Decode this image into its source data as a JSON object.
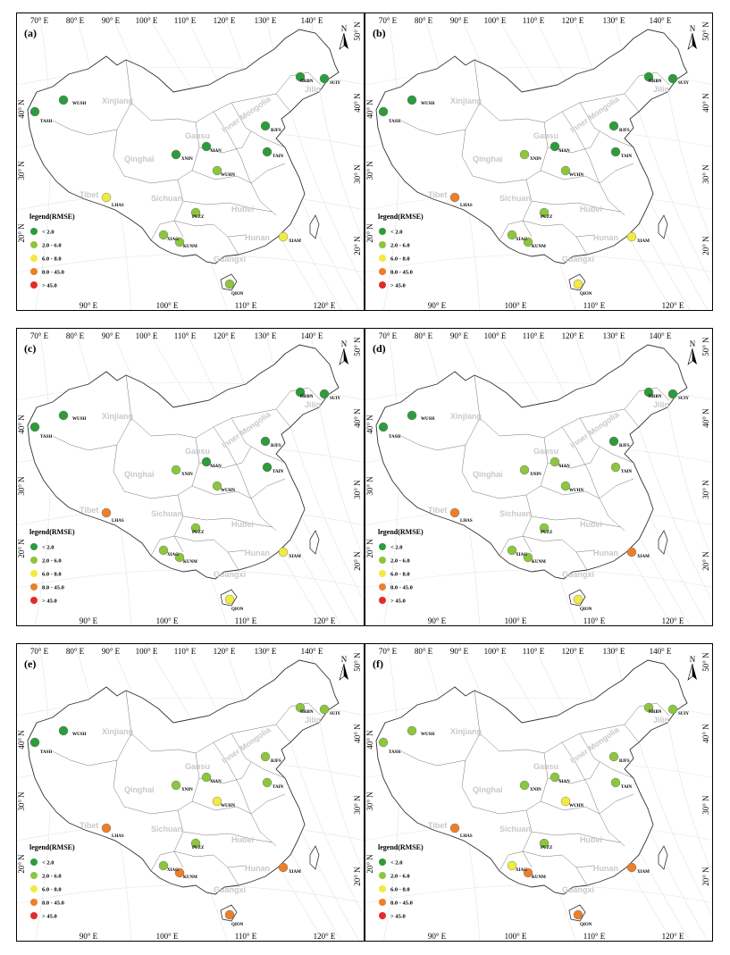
{
  "top_axis_labels": [
    "70° E",
    "80° E",
    "90° E",
    "100° E",
    "110° E",
    "120° E",
    "130° E",
    "140° E"
  ],
  "bottom_axis_labels": [
    "90° E",
    "100° E",
    "110° E",
    "120° E"
  ],
  "left_axis_labels": [
    "40° N",
    "30° N",
    "20° N"
  ],
  "right_axis_labels": [
    "50° N",
    "40° N",
    "30° N",
    "20° N"
  ],
  "north_label": "N",
  "province_labels": [
    "Xinjiang",
    "Inner Mongolia",
    "Qinghai",
    "Tibet",
    "Sichuan",
    "Hubei",
    "Hunan",
    "Guangxi",
    "Jilin",
    "Gansu"
  ],
  "legend": {
    "title": "legend(RMSE)",
    "classes": [
      {
        "label": "< 2.0",
        "color": "#2e9b3c"
      },
      {
        "label": "2.0 - 6.0",
        "color": "#8cc63f"
      },
      {
        "label": "6.0 - 8.0",
        "color": "#f2ea40"
      },
      {
        "label": "8.0 - 45.0",
        "color": "#ec7f2a"
      },
      {
        "label": "> 45.0",
        "color": "#e32a2a"
      }
    ]
  },
  "stations": [
    "TASH",
    "WUSH",
    "HRBN",
    "SUIY",
    "BJFS",
    "TAIN",
    "XNIN",
    "XIAN",
    "WUHN",
    "LHAS",
    "KUNM",
    "XIAG",
    "PUZZ",
    "XIAM",
    "QION"
  ],
  "panels": [
    {
      "label": "(a)",
      "classes": [
        0,
        0,
        0,
        0,
        0,
        0,
        0,
        0,
        1,
        2,
        1,
        1,
        1,
        2,
        1
      ]
    },
    {
      "label": "(b)",
      "classes": [
        0,
        0,
        0,
        0,
        0,
        0,
        1,
        0,
        1,
        3,
        1,
        1,
        1,
        2,
        2
      ]
    },
    {
      "label": "(c)",
      "classes": [
        0,
        0,
        0,
        0,
        0,
        0,
        1,
        0,
        1,
        3,
        1,
        1,
        1,
        2,
        2
      ]
    },
    {
      "label": "(d)",
      "classes": [
        0,
        0,
        0,
        0,
        0,
        1,
        1,
        1,
        1,
        3,
        1,
        1,
        1,
        3,
        2
      ]
    },
    {
      "label": "(e)",
      "classes": [
        0,
        0,
        1,
        1,
        1,
        1,
        1,
        1,
        2,
        3,
        3,
        1,
        1,
        3,
        3
      ]
    },
    {
      "label": "(f)",
      "classes": [
        1,
        1,
        1,
        1,
        1,
        1,
        1,
        1,
        2,
        3,
        3,
        2,
        1,
        3,
        3
      ]
    }
  ]
}
